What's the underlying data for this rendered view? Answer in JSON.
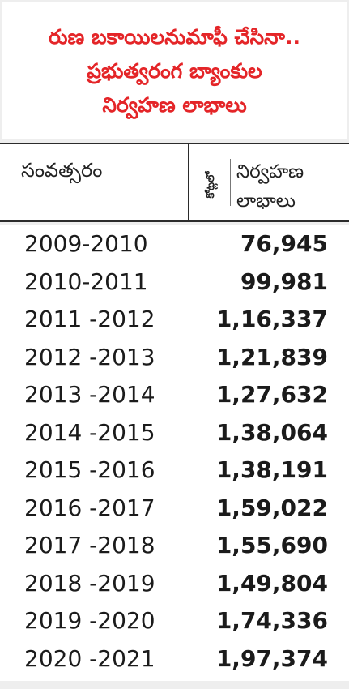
{
  "title": {
    "lines": [
      "రుణ బకాయిలనుమాఫీ చేసినా..",
      "ప్రభుత్వరంగ బ్యాంకుల",
      "నిర్వహణ లాభాలు"
    ]
  },
  "header": {
    "year_label": "సంవత్సరం",
    "unit_label": "కోట్లలో",
    "profit_label_line1": "నిర్వహణ",
    "profit_label_line2": "లాభాలు"
  },
  "rows": [
    {
      "year": "2009-2010",
      "value": "76,945"
    },
    {
      "year": "2010-2011",
      "value": "99,981"
    },
    {
      "year": "2011 -2012",
      "value": "1,16,337"
    },
    {
      "year": "2012 -2013",
      "value": "1,21,839"
    },
    {
      "year": "2013 -2014",
      "value": "1,27,632"
    },
    {
      "year": "2014 -2015",
      "value": "1,38,064"
    },
    {
      "year": "2015 -2016",
      "value": "1,38,191"
    },
    {
      "year": "2016 -2017",
      "value": "1,59,022"
    },
    {
      "year": "2017 -2018",
      "value": "1,55,690"
    },
    {
      "year": "2018 -2019",
      "value": "1,49,804"
    },
    {
      "year": "2019 -2020",
      "value": "1,74,336"
    },
    {
      "year": "2020 -2021",
      "value": "1,97,374"
    }
  ],
  "colors": {
    "title": "#e42528",
    "text": "#1b1b1b",
    "rule": "#2b2b2b",
    "frame": "#eeeeee"
  }
}
